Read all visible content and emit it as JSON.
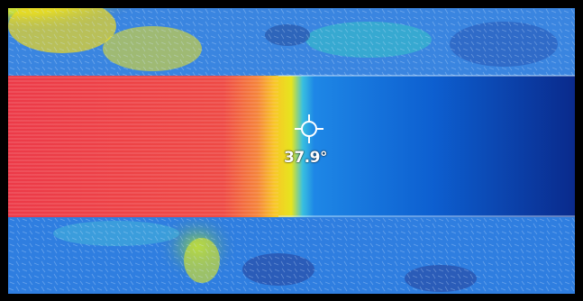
{
  "thermal_view": {
    "spot_temperature": "37.9°",
    "palette_colors": {
      "hot": "#ee3b4a",
      "warm": "#f5d21e",
      "mid": "#37c7c9",
      "cool": "#2a73d8",
      "cold": "#0b1f76"
    }
  }
}
